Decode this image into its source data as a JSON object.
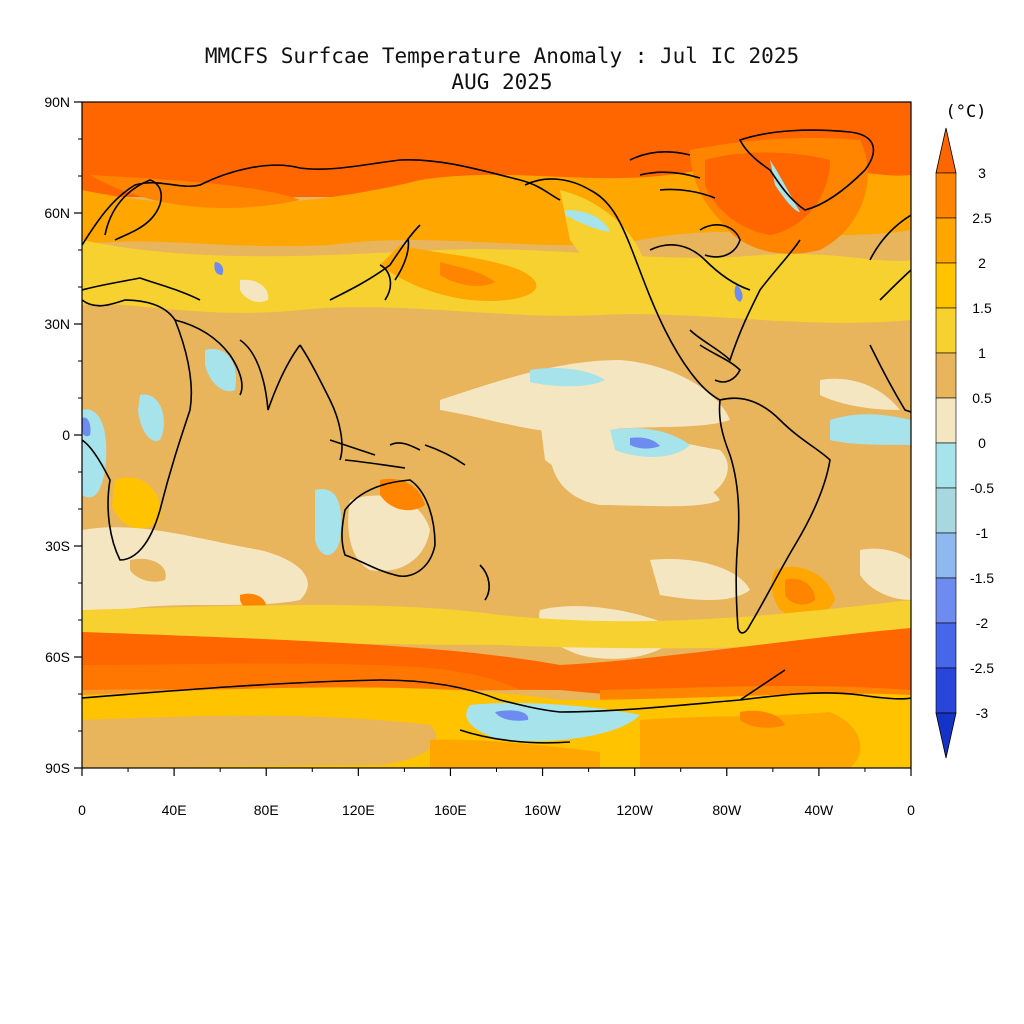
{
  "title": {
    "line1": "MMCFS Surfcae Temperature Anomaly : Jul IC 2025",
    "line2": "AUG 2025"
  },
  "map": {
    "projection": "cylindrical-equidistant",
    "center_longitude": 180,
    "lat_ticks": [
      {
        "lat": 90,
        "label": "90N"
      },
      {
        "lat": 60,
        "label": "60N"
      },
      {
        "lat": 30,
        "label": "30N"
      },
      {
        "lat": 0,
        "label": "0"
      },
      {
        "lat": -30,
        "label": "30S"
      },
      {
        "lat": -60,
        "label": "60S"
      },
      {
        "lat": -90,
        "label": "90S"
      }
    ],
    "lon_ticks": [
      {
        "lon": 0,
        "label": "0"
      },
      {
        "lon": 40,
        "label": "40E"
      },
      {
        "lon": 80,
        "label": "80E"
      },
      {
        "lon": 120,
        "label": "120E"
      },
      {
        "lon": 160,
        "label": "160E"
      },
      {
        "lon": 200,
        "label": "160W"
      },
      {
        "lon": 240,
        "label": "120W"
      },
      {
        "lon": 280,
        "label": "80W"
      },
      {
        "lon": 320,
        "label": "40W"
      },
      {
        "lon": 360,
        "label": "0"
      }
    ]
  },
  "colorbar": {
    "unit": "(°C)",
    "levels": [
      "3",
      "2.5",
      "2",
      "1.5",
      "1",
      "0.5",
      "0",
      "-0.5",
      "-1",
      "-1.5",
      "-2",
      "-2.5",
      "-3"
    ],
    "colors_top_to_bottom": [
      "#FF6600",
      "#FF8500",
      "#FFA600",
      "#FFC300",
      "#F7D130",
      "#E8B45C",
      "#F5E6C2",
      "#A6E3EB",
      "#A8D7E0",
      "#8FB8EE",
      "#6E8CF0",
      "#4866EA",
      "#2A46DA",
      "#1633C8"
    ]
  },
  "colors": {
    "coastline": "#000000",
    "frame": "#000000"
  }
}
